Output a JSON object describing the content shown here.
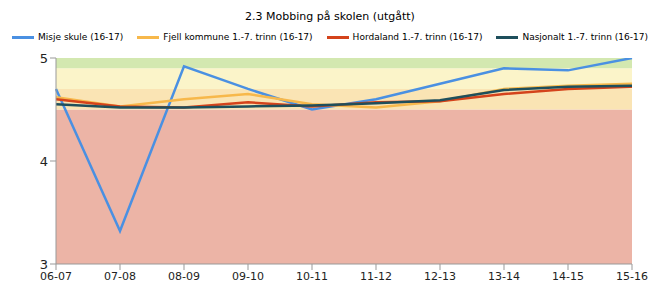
{
  "chart_data": {
    "type": "line",
    "title": "2.3 Mobbing på skolen (utgått)",
    "categories": [
      "06-07",
      "07-08",
      "08-09",
      "09-10",
      "10-11",
      "11-12",
      "12-13",
      "13-14",
      "14-15",
      "15-16"
    ],
    "series": [
      {
        "name": "Misje skule (16-17)",
        "color": "#4a90e2",
        "values": [
          4.7,
          3.32,
          4.92,
          4.7,
          4.5,
          4.6,
          4.75,
          4.9,
          4.88,
          5.0
        ]
      },
      {
        "name": "Fjell kommune 1.-7. trinn (16-17)",
        "color": "#f7b84b",
        "values": [
          4.62,
          4.53,
          4.6,
          4.65,
          4.55,
          4.52,
          4.58,
          4.7,
          4.73,
          4.75
        ]
      },
      {
        "name": "Hordaland 1.-7. trinn (16-17)",
        "color": "#d4431b",
        "values": [
          4.6,
          4.53,
          4.52,
          4.57,
          4.53,
          4.57,
          4.58,
          4.65,
          4.7,
          4.72
        ]
      },
      {
        "name": "Nasjonalt 1.-7. trinn (16-17)",
        "color": "#1e4f5c",
        "values": [
          4.55,
          4.52,
          4.52,
          4.53,
          4.54,
          4.56,
          4.59,
          4.69,
          4.72,
          4.73
        ]
      }
    ],
    "ylim": [
      3,
      5
    ],
    "yticks": [
      3,
      4,
      5
    ],
    "grid": false,
    "legend": "top",
    "bands": [
      {
        "from": 3,
        "to": 4.5,
        "color": "#ecb4a6"
      },
      {
        "from": 4.5,
        "to": 4.7,
        "color": "#fae4b4"
      },
      {
        "from": 4.7,
        "to": 4.9,
        "color": "#fbf4c9"
      },
      {
        "from": 4.9,
        "to": 5,
        "color": "#d3e8b0"
      }
    ]
  }
}
